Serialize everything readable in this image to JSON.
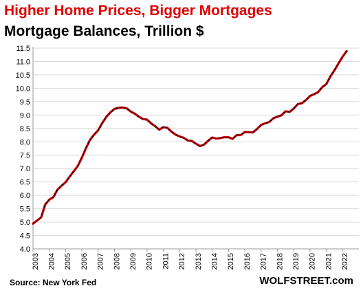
{
  "title": "Higher Home Prices, Bigger Mortgages",
  "subtitle": "Mortgage Balances, Trillion $",
  "source": "Source: New York Fed",
  "brand": "WOLFSTREET.com",
  "colors": {
    "title": "#e00000",
    "line": "#c00000",
    "line_dash": "#000000",
    "grid": "#d9d9d9",
    "axis": "#999999"
  },
  "chart_data": {
    "type": "line",
    "title": "Higher Home Prices, Bigger Mortgages",
    "ylabel": "Mortgage Balances, Trillion $",
    "xlabel": "",
    "ylim": [
      4.0,
      11.5
    ],
    "yticks": [
      "4.0",
      "4.5",
      "5.0",
      "5.5",
      "6.0",
      "6.5",
      "7.0",
      "7.5",
      "8.0",
      "8.5",
      "9.0",
      "9.5",
      "10.0",
      "10.5",
      "11.0",
      "11.5"
    ],
    "xticks": [
      "2003",
      "2004",
      "2005",
      "2006",
      "2007",
      "2008",
      "2009",
      "2010",
      "2011",
      "2012",
      "2013",
      "2014",
      "2015",
      "2016",
      "2017",
      "2018",
      "2019",
      "2020",
      "2021",
      "2022"
    ],
    "grid": true,
    "series": [
      {
        "x": [
          "2003Q1",
          "2003Q2",
          "2003Q3",
          "2003Q4",
          "2004Q1",
          "2004Q2",
          "2004Q3",
          "2004Q4",
          "2005Q1",
          "2005Q2",
          "2005Q3",
          "2005Q4",
          "2006Q1",
          "2006Q2",
          "2006Q3",
          "2006Q4",
          "2007Q1",
          "2007Q2",
          "2007Q3",
          "2007Q4",
          "2008Q1",
          "2008Q2",
          "2008Q3",
          "2008Q4",
          "2009Q1",
          "2009Q2",
          "2009Q3",
          "2009Q4",
          "2010Q1",
          "2010Q2",
          "2010Q3",
          "2010Q4",
          "2011Q1",
          "2011Q2",
          "2011Q3",
          "2011Q4",
          "2012Q1",
          "2012Q2",
          "2012Q3",
          "2012Q4",
          "2013Q1",
          "2013Q2",
          "2013Q3",
          "2013Q4",
          "2014Q1",
          "2014Q2",
          "2014Q3",
          "2014Q4",
          "2015Q1",
          "2015Q2",
          "2015Q3",
          "2015Q4",
          "2016Q1",
          "2016Q2",
          "2016Q3",
          "2016Q4",
          "2017Q1",
          "2017Q2",
          "2017Q3",
          "2017Q4",
          "2018Q1",
          "2018Q2",
          "2018Q3",
          "2018Q4",
          "2019Q1",
          "2019Q2",
          "2019Q3",
          "2019Q4",
          "2020Q1",
          "2020Q2",
          "2020Q3",
          "2020Q4",
          "2021Q1",
          "2021Q2",
          "2021Q3",
          "2021Q4",
          "2022Q1",
          "2022Q2"
        ],
        "values": [
          4.94,
          5.06,
          5.18,
          5.66,
          5.84,
          5.93,
          6.21,
          6.36,
          6.49,
          6.7,
          6.9,
          7.1,
          7.41,
          7.76,
          8.07,
          8.27,
          8.43,
          8.7,
          8.93,
          9.1,
          9.23,
          9.27,
          9.28,
          9.25,
          9.13,
          9.05,
          8.94,
          8.85,
          8.83,
          8.69,
          8.58,
          8.45,
          8.55,
          8.52,
          8.38,
          8.27,
          8.2,
          8.15,
          8.05,
          8.03,
          7.93,
          7.84,
          7.9,
          8.04,
          8.16,
          8.12,
          8.14,
          8.17,
          8.17,
          8.11,
          8.25,
          8.25,
          8.37,
          8.36,
          8.35,
          8.48,
          8.63,
          8.69,
          8.74,
          8.88,
          8.94,
          8.99,
          9.14,
          9.12,
          9.24,
          9.41,
          9.44,
          9.56,
          9.71,
          9.78,
          9.86,
          10.04,
          10.16,
          10.44,
          10.67,
          10.93,
          11.18,
          11.39
        ]
      }
    ]
  }
}
